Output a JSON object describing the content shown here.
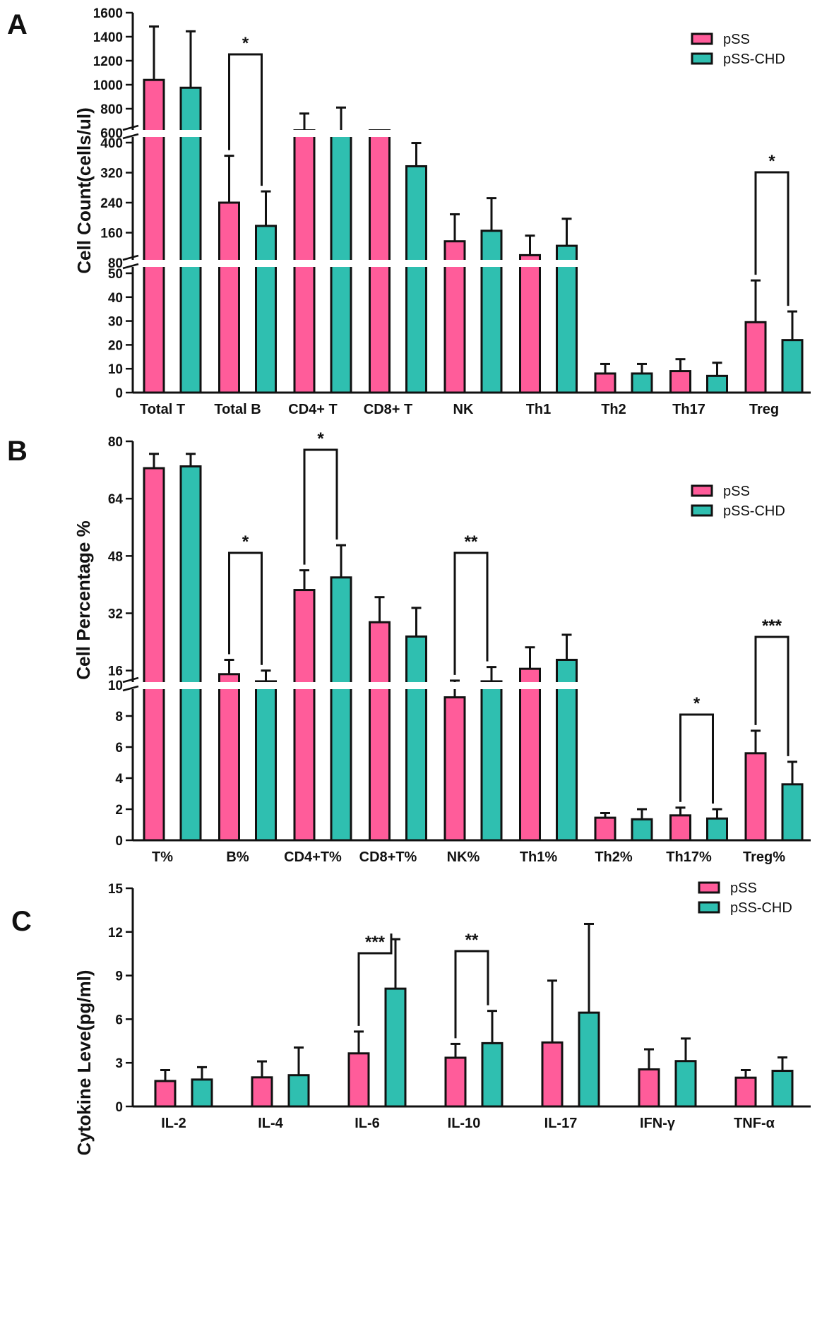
{
  "colors": {
    "pSS": "#ff5c9a",
    "pSS_CHD": "#2fbfb0",
    "axis": "#111111",
    "edge": "#111111"
  },
  "chart_data": [
    {
      "panel": "A",
      "type": "bar",
      "ylabel": "Cell Count(cells/ul)",
      "categories": [
        "Total T",
        "Total B",
        "CD4+ T",
        "CD8+ T",
        "NK",
        "Th1",
        "Th2",
        "Th17",
        "Treg"
      ],
      "series": [
        {
          "name": "pSS",
          "values": [
            1040,
            240,
            620,
            620,
            137,
            100,
            8,
            9,
            29.5
          ],
          "errors": [
            445,
            125,
            140,
            0,
            72,
            52,
            4,
            5,
            17.5
          ]
        },
        {
          "name": "pSS-CHD",
          "values": [
            975,
            178,
            605,
            337,
            165,
            125,
            8,
            7,
            22
          ],
          "errors": [
            470,
            92,
            205,
            62,
            87,
            72,
            4,
            5.5,
            12
          ]
        }
      ],
      "segments": [
        {
          "range": [
            0,
            50
          ],
          "ticks": [
            "0",
            "10",
            "20",
            "30",
            "40",
            "50"
          ]
        },
        {
          "range": [
            80,
            400
          ],
          "ticks": [
            "80",
            "160",
            "240",
            "320",
            "400"
          ]
        },
        {
          "range": [
            600,
            1600
          ],
          "ticks": [
            "600",
            "800",
            "1000",
            "1200",
            "1400",
            "1600"
          ]
        }
      ],
      "legend": {
        "position": "top-right",
        "entries": [
          "pSS",
          "pSS-CHD"
        ]
      },
      "annotations": [
        {
          "label": "*",
          "from": 1,
          "to": 1,
          "between": "Total B"
        },
        {
          "label": "*",
          "from": 8,
          "to": 8,
          "between": "Treg"
        }
      ]
    },
    {
      "panel": "B",
      "type": "bar",
      "ylabel": "Cell Percentage %",
      "categories": [
        "T%",
        "B%",
        "CD4+T%",
        "CD8+T%",
        "NK%",
        "Th1%",
        "Th2%",
        "Th17%",
        "Treg%"
      ],
      "series": [
        {
          "name": "pSS",
          "values": [
            72.5,
            15,
            38.5,
            29.5,
            9.2,
            16.5,
            1.45,
            1.6,
            5.6
          ],
          "errors": [
            4,
            4,
            5.5,
            7,
            4,
            6,
            0.3,
            0.5,
            1.45
          ]
        },
        {
          "name": "pSS-CHD",
          "values": [
            73,
            13,
            42,
            25.5,
            13,
            19,
            1.35,
            1.4,
            3.6
          ],
          "errors": [
            3.5,
            3,
            9,
            8,
            4,
            7,
            0.65,
            0.6,
            1.45
          ]
        }
      ],
      "segments": [
        {
          "range": [
            0,
            10
          ],
          "ticks": [
            "0",
            "2",
            "4",
            "6",
            "8",
            "10"
          ]
        },
        {
          "range": [
            12,
            80
          ],
          "ticks": [
            "16",
            "32",
            "48",
            "64",
            "80"
          ]
        }
      ],
      "legend": {
        "position": "top-right",
        "entries": [
          "pSS",
          "pSS-CHD"
        ]
      },
      "annotations": [
        {
          "label": "*",
          "between": "B%"
        },
        {
          "label": "*",
          "between": "CD4+T%"
        },
        {
          "label": "**",
          "between": "NK%"
        },
        {
          "label": "*",
          "between": "Th17%"
        },
        {
          "label": "***",
          "between": "Treg%"
        }
      ]
    },
    {
      "panel": "C",
      "type": "bar",
      "ylabel": "Cytokine Leve(pg/ml)",
      "categories": [
        "IL-2",
        "IL-4",
        "IL-6",
        "IL-10",
        "IL-17",
        "IFN-γ",
        "TNF-α"
      ],
      "series": [
        {
          "name": "pSS",
          "values": [
            1.75,
            2.0,
            3.65,
            3.35,
            4.4,
            2.55,
            1.98
          ],
          "errors": [
            0.75,
            1.1,
            1.5,
            0.95,
            4.25,
            1.38,
            0.52
          ]
        },
        {
          "name": "pSS-CHD",
          "values": [
            1.85,
            2.15,
            8.1,
            4.35,
            6.45,
            3.12,
            2.45
          ],
          "errors": [
            0.85,
            1.9,
            3.4,
            2.22,
            6.1,
            1.55,
            0.92
          ]
        }
      ],
      "segments": [
        {
          "range": [
            0,
            15
          ],
          "ticks": [
            "0",
            "3",
            "6",
            "9",
            "12",
            "15"
          ]
        }
      ],
      "legend": {
        "position": "top-right",
        "entries": [
          "pSS",
          "pSS-CHD"
        ]
      },
      "annotations": [
        {
          "label": "***",
          "between": "IL-6"
        },
        {
          "label": "**",
          "between": "IL-10"
        }
      ]
    }
  ]
}
